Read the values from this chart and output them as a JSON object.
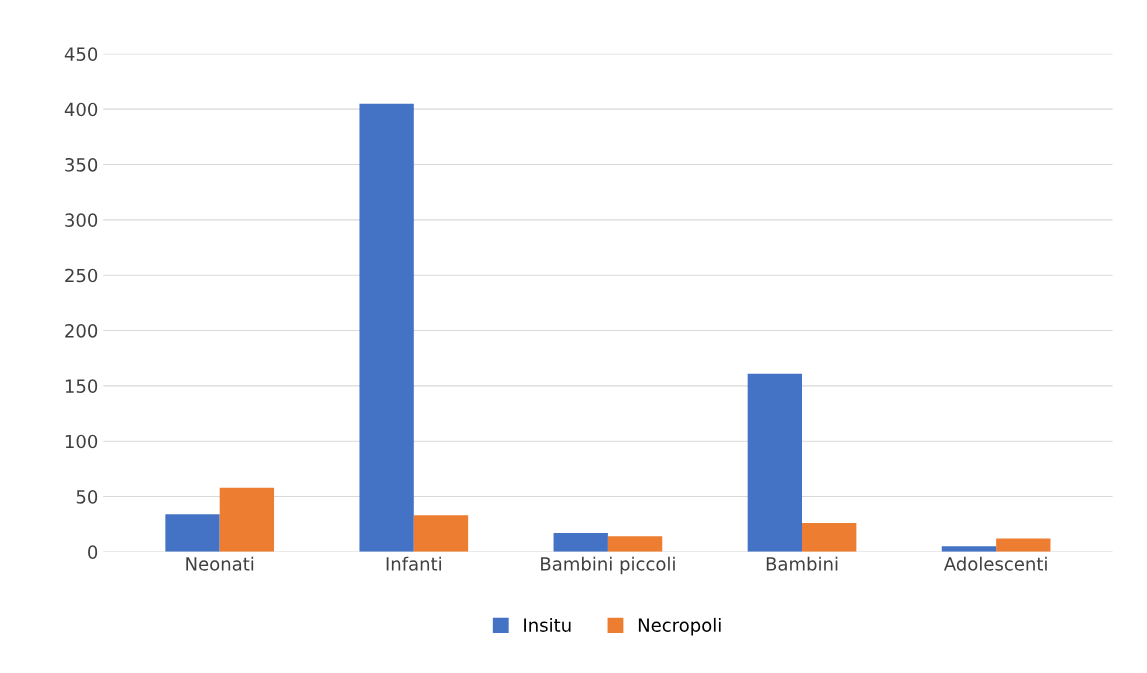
{
  "chart_data": {
    "type": "bar",
    "categories": [
      "Neonati",
      "Infanti",
      "Bambini piccoli",
      "Bambini",
      "Adolescenti"
    ],
    "series": [
      {
        "name": "Insitu",
        "color": "#4472c4",
        "values": [
          34,
          405,
          17,
          161,
          5
        ]
      },
      {
        "name": "Necropoli",
        "color": "#ed7d31",
        "values": [
          58,
          33,
          14,
          26,
          12
        ]
      }
    ],
    "ylim": [
      0,
      450
    ],
    "yticks": [
      0,
      50,
      100,
      150,
      200,
      250,
      300,
      350,
      400,
      450
    ],
    "grid": "y",
    "legend": "bottom"
  }
}
